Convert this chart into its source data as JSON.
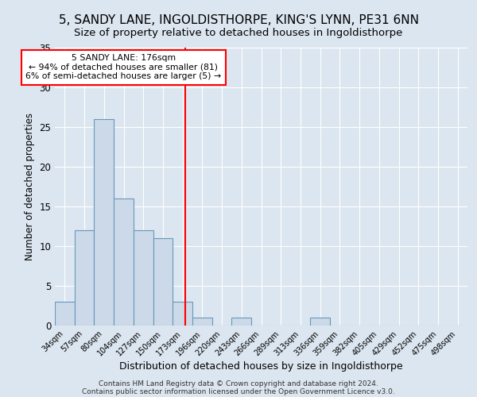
{
  "title1": "5, SANDY LANE, INGOLDISTHORPE, KING'S LYNN, PE31 6NN",
  "title2": "Size of property relative to detached houses in Ingoldisthorpe",
  "xlabel": "Distribution of detached houses by size in Ingoldisthorpe",
  "ylabel": "Number of detached properties",
  "bin_labels": [
    "34sqm",
    "57sqm",
    "80sqm",
    "104sqm",
    "127sqm",
    "150sqm",
    "173sqm",
    "196sqm",
    "220sqm",
    "243sqm",
    "266sqm",
    "289sqm",
    "313sqm",
    "336sqm",
    "359sqm",
    "382sqm",
    "405sqm",
    "429sqm",
    "452sqm",
    "475sqm",
    "498sqm"
  ],
  "bar_values": [
    3,
    12,
    26,
    16,
    12,
    11,
    3,
    1,
    0,
    1,
    0,
    0,
    0,
    1,
    0,
    0,
    0,
    0,
    0,
    0,
    0
  ],
  "bar_color": "#ccd9e8",
  "bar_edge_color": "#6699bb",
  "vline_color": "red",
  "annotation_line1": "5 SANDY LANE: 176sqm",
  "annotation_line2": "← 94% of detached houses are smaller (81)",
  "annotation_line3": "6% of semi-detached houses are larger (5) →",
  "annotation_box_color": "white",
  "annotation_box_edge_color": "red",
  "ylim": [
    0,
    35
  ],
  "yticks": [
    0,
    5,
    10,
    15,
    20,
    25,
    30,
    35
  ],
  "bg_color": "#dce6f0",
  "footer_line1": "Contains HM Land Registry data © Crown copyright and database right 2024.",
  "footer_line2": "Contains public sector information licensed under the Open Government Licence v3.0.",
  "title1_fontsize": 11,
  "title2_fontsize": 9.5,
  "xlabel_fontsize": 9,
  "ylabel_fontsize": 8.5,
  "vline_bin_index": 6.13
}
